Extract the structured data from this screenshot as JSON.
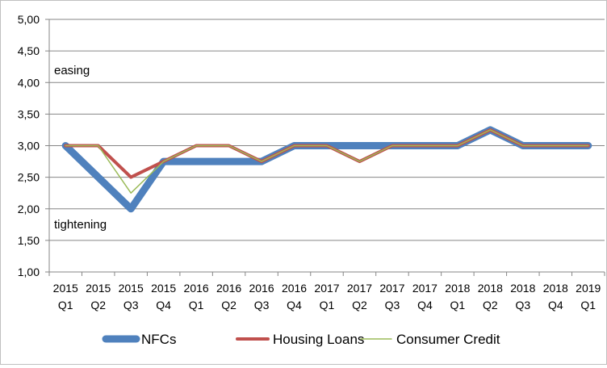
{
  "chart_data": {
    "type": "line",
    "x_categories": [
      {
        "year": "2015",
        "q": "Q1"
      },
      {
        "year": "2015",
        "q": "Q2"
      },
      {
        "year": "2015",
        "q": "Q3"
      },
      {
        "year": "2015",
        "q": "Q4"
      },
      {
        "year": "2016",
        "q": "Q1"
      },
      {
        "year": "2016",
        "q": "Q2"
      },
      {
        "year": "2016",
        "q": "Q3"
      },
      {
        "year": "2016",
        "q": "Q4"
      },
      {
        "year": "2017",
        "q": "Q1"
      },
      {
        "year": "2017",
        "q": "Q2"
      },
      {
        "year": "2017",
        "q": "Q3"
      },
      {
        "year": "2017",
        "q": "Q4"
      },
      {
        "year": "2018",
        "q": "Q1"
      },
      {
        "year": "2018",
        "q": "Q2"
      },
      {
        "year": "2018",
        "q": "Q3"
      },
      {
        "year": "2018",
        "q": "Q4"
      },
      {
        "year": "2019",
        "q": "Q1"
      }
    ],
    "ylim": [
      1.0,
      5.0
    ],
    "y_ticks": [
      "1,00",
      "1,50",
      "2,00",
      "2,50",
      "3,00",
      "3,50",
      "4,00",
      "4,50",
      "5,00"
    ],
    "grid": "horizontal",
    "legend_position": "bottom",
    "annotations": [
      "easing",
      "tightening"
    ],
    "series": [
      {
        "name": "NFCs",
        "color": "#4f81bd",
        "values": [
          3.0,
          2.5,
          2.0,
          2.75,
          2.75,
          2.75,
          2.75,
          3.0,
          3.0,
          3.0,
          3.0,
          3.0,
          3.0,
          3.25,
          3.0,
          3.0,
          3.0
        ]
      },
      {
        "name": "Housing Loans",
        "color": "#c0504d",
        "values": [
          3.0,
          3.0,
          2.5,
          2.75,
          3.0,
          3.0,
          2.75,
          3.0,
          3.0,
          2.75,
          3.0,
          3.0,
          3.0,
          3.25,
          3.0,
          3.0,
          3.0
        ]
      },
      {
        "name": "Consumer Credit",
        "color": "#9bbb59",
        "values": [
          3.0,
          3.0,
          2.25,
          2.75,
          3.0,
          3.0,
          2.75,
          3.0,
          3.0,
          2.75,
          3.0,
          3.0,
          3.0,
          3.25,
          3.0,
          3.0,
          3.0
        ]
      }
    ]
  }
}
